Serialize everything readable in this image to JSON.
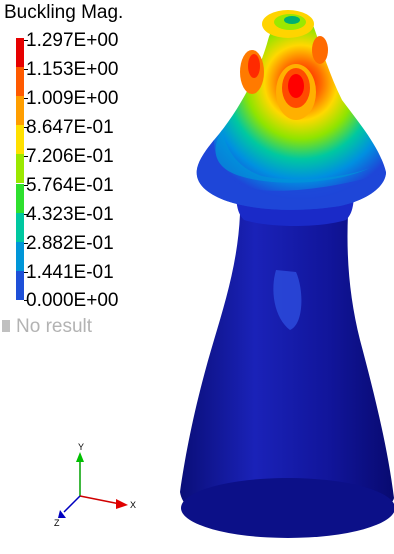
{
  "legend": {
    "title": "Buckling Mag.",
    "ticks": [
      "1.297E+00",
      "1.153E+00",
      "1.009E+00",
      "8.647E-01",
      "7.206E-01",
      "5.764E-01",
      "4.323E-01",
      "2.882E-01",
      "1.441E-01",
      "0.000E+00"
    ],
    "colors": [
      "#e60000",
      "#ff5a00",
      "#ff9e00",
      "#ffe000",
      "#9be800",
      "#2ee02e",
      "#00c8a0",
      "#0096d8",
      "#1e50d8",
      "#0000b4"
    ],
    "no_result": "No result",
    "no_result_color": "#c0c0c0"
  },
  "triad": {
    "x": "X",
    "y": "Y",
    "z": "Z"
  },
  "colors": {
    "model_base": "#10149a",
    "background": "#ffffff"
  }
}
